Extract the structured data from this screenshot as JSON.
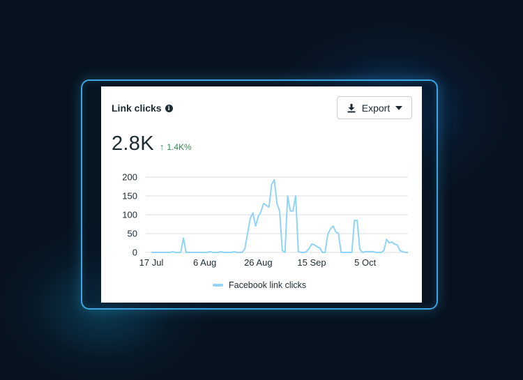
{
  "card": {
    "title": "Link clicks",
    "info_icon": "info-icon",
    "export_label": "Export",
    "export_icon": "download-icon",
    "dropdown_icon": "caret-down-icon"
  },
  "metric": {
    "value": "2.8K",
    "change": "1.4K%",
    "change_icon": "arrow-up-icon",
    "change_color": "#2e8c4a"
  },
  "legend": {
    "label": "Facebook link clicks",
    "color": "#8fd4f7"
  },
  "chart_data": {
    "type": "line",
    "title": "",
    "xlabel": "",
    "ylabel": "",
    "ylim": [
      0,
      200
    ],
    "yticks": [
      "0",
      "50",
      "100",
      "150",
      "200"
    ],
    "xticks": [
      "17 Jul",
      "6 Aug",
      "26 Aug",
      "15 Sep",
      "5 Oct"
    ],
    "xtick_day_index": [
      0,
      20,
      40,
      60,
      80
    ],
    "grid": true,
    "legend_position": "bottom-center",
    "series": [
      {
        "name": "Facebook link clicks",
        "color": "#8fd4f7",
        "values": [
          0,
          0,
          0,
          0,
          0,
          0,
          0,
          0,
          2,
          0,
          0,
          0,
          38,
          0,
          0,
          0,
          0,
          0,
          0,
          0,
          0,
          0,
          2,
          0,
          0,
          0,
          2,
          0,
          0,
          0,
          0,
          2,
          0,
          0,
          0,
          10,
          50,
          90,
          105,
          70,
          95,
          108,
          130,
          125,
          120,
          180,
          193,
          130,
          110,
          5,
          0,
          150,
          110,
          110,
          150,
          2,
          0,
          0,
          2,
          10,
          22,
          20,
          15,
          12,
          0,
          0,
          48,
          62,
          70,
          55,
          50,
          0,
          0,
          0,
          0,
          0,
          85,
          85,
          8,
          0,
          2,
          2,
          2,
          2,
          0,
          0,
          0,
          5,
          35,
          25,
          28,
          22,
          20,
          5,
          2,
          0,
          0
        ]
      }
    ]
  }
}
